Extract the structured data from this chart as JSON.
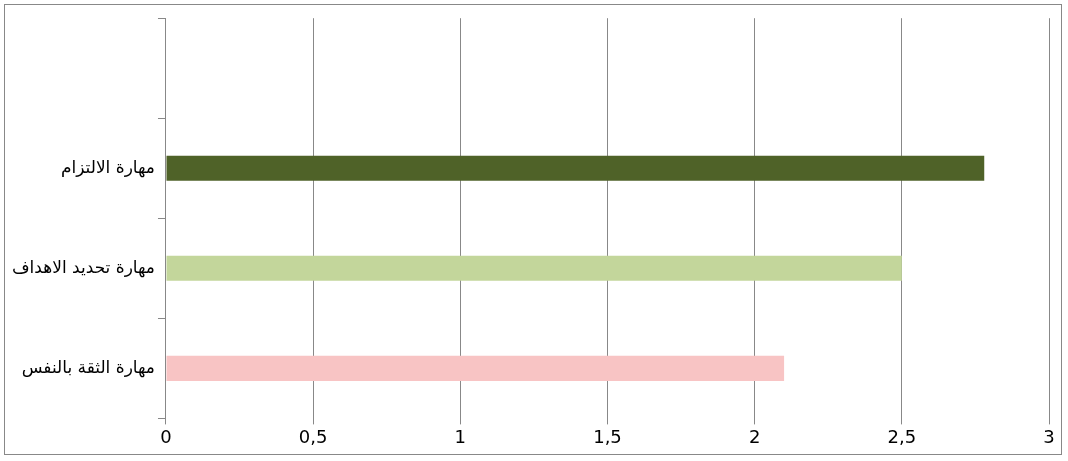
{
  "chart_data": {
    "type": "bar",
    "orientation": "horizontal",
    "categories": [
      null,
      "مهارة الالتزام",
      "مهارة تحديد الاهداف",
      "مهارة الثقة بالنفس"
    ],
    "values": [
      null,
      2.78,
      2.5,
      2.1
    ],
    "colors": [
      "#4f6228",
      "#4f6228",
      "#c3d69b",
      "#f8c4c4"
    ],
    "xlim": [
      0,
      3
    ],
    "xticks": [
      0,
      {
        "value": 0.5,
        "label": "0,5"
      },
      1,
      {
        "value": 1.5,
        "label": "1,5"
      },
      2,
      {
        "value": 2.5,
        "label": "2,5"
      },
      3
    ],
    "grid": "x"
  }
}
